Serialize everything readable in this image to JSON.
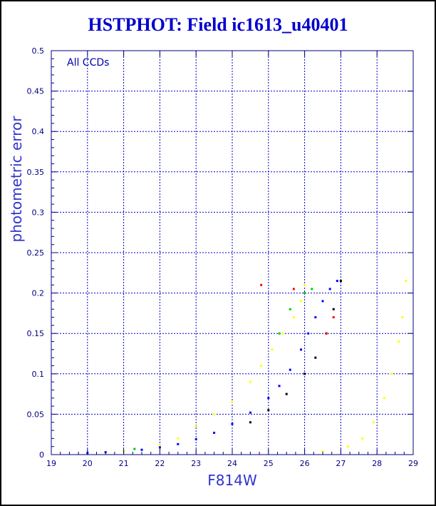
{
  "chart_data": {
    "type": "scatter",
    "title": "HSTPHOT: Field ic1613_u40401",
    "xlabel": "F814W",
    "ylabel": "photometric error",
    "annotation": "All CCDs",
    "xlim": [
      19,
      29
    ],
    "ylim": [
      0,
      0.5
    ],
    "x_ticks": [
      "19",
      "20",
      "21",
      "22",
      "23",
      "24",
      "25",
      "26",
      "27",
      "28",
      "29"
    ],
    "y_ticks": [
      "0",
      "0.05",
      "0.1",
      "0.15",
      "0.2",
      "0.25",
      "0.3",
      "0.35",
      "0.4",
      "0.45",
      "0.5"
    ],
    "grid": true,
    "series": [
      {
        "color": "#0000ff",
        "points": [
          [
            20.0,
            0.002
          ],
          [
            20.5,
            0.003
          ],
          [
            21.0,
            0.004
          ],
          [
            21.5,
            0.006
          ],
          [
            22.0,
            0.009
          ],
          [
            22.5,
            0.013
          ],
          [
            23.0,
            0.019
          ],
          [
            23.5,
            0.027
          ],
          [
            24.0,
            0.038
          ],
          [
            24.5,
            0.052
          ],
          [
            25.0,
            0.07
          ],
          [
            25.3,
            0.085
          ],
          [
            25.6,
            0.105
          ],
          [
            25.9,
            0.13
          ],
          [
            26.1,
            0.15
          ],
          [
            26.3,
            0.17
          ],
          [
            26.5,
            0.19
          ],
          [
            26.7,
            0.205
          ],
          [
            26.9,
            0.215
          ]
        ]
      },
      {
        "color": "#000000",
        "points": [
          [
            24.5,
            0.04
          ],
          [
            25.0,
            0.055
          ],
          [
            25.5,
            0.075
          ],
          [
            26.0,
            0.1
          ],
          [
            26.3,
            0.12
          ],
          [
            26.6,
            0.15
          ],
          [
            26.8,
            0.18
          ],
          [
            27.0,
            0.215
          ]
        ]
      },
      {
        "color": "#ffff00",
        "points": [
          [
            21.0,
            0.004
          ],
          [
            22.0,
            0.012
          ],
          [
            22.5,
            0.02
          ],
          [
            23.0,
            0.035
          ],
          [
            23.5,
            0.05
          ],
          [
            24.0,
            0.065
          ],
          [
            24.5,
            0.09
          ],
          [
            24.8,
            0.11
          ],
          [
            25.1,
            0.13
          ],
          [
            25.4,
            0.15
          ],
          [
            25.7,
            0.17
          ],
          [
            25.9,
            0.19
          ],
          [
            26.0,
            0.21
          ],
          [
            26.5,
            0.004
          ],
          [
            27.2,
            0.01
          ],
          [
            27.6,
            0.02
          ],
          [
            27.9,
            0.04
          ],
          [
            28.2,
            0.07
          ],
          [
            28.4,
            0.1
          ],
          [
            28.6,
            0.14
          ],
          [
            28.7,
            0.17
          ],
          [
            28.8,
            0.215
          ]
        ]
      },
      {
        "color": "#00cc00",
        "points": [
          [
            21.3,
            0.007
          ],
          [
            25.3,
            0.15
          ],
          [
            25.6,
            0.18
          ],
          [
            26.0,
            0.2
          ],
          [
            26.2,
            0.205
          ]
        ]
      },
      {
        "color": "#ff0000",
        "points": [
          [
            24.8,
            0.21
          ],
          [
            25.7,
            0.205
          ],
          [
            26.6,
            0.15
          ],
          [
            26.8,
            0.17
          ]
        ]
      }
    ]
  },
  "colors": {
    "title": "#0000cc",
    "axis": "#000080",
    "grid": "#0000cc",
    "labels": "#3333cc",
    "annotation": "#0000aa"
  }
}
